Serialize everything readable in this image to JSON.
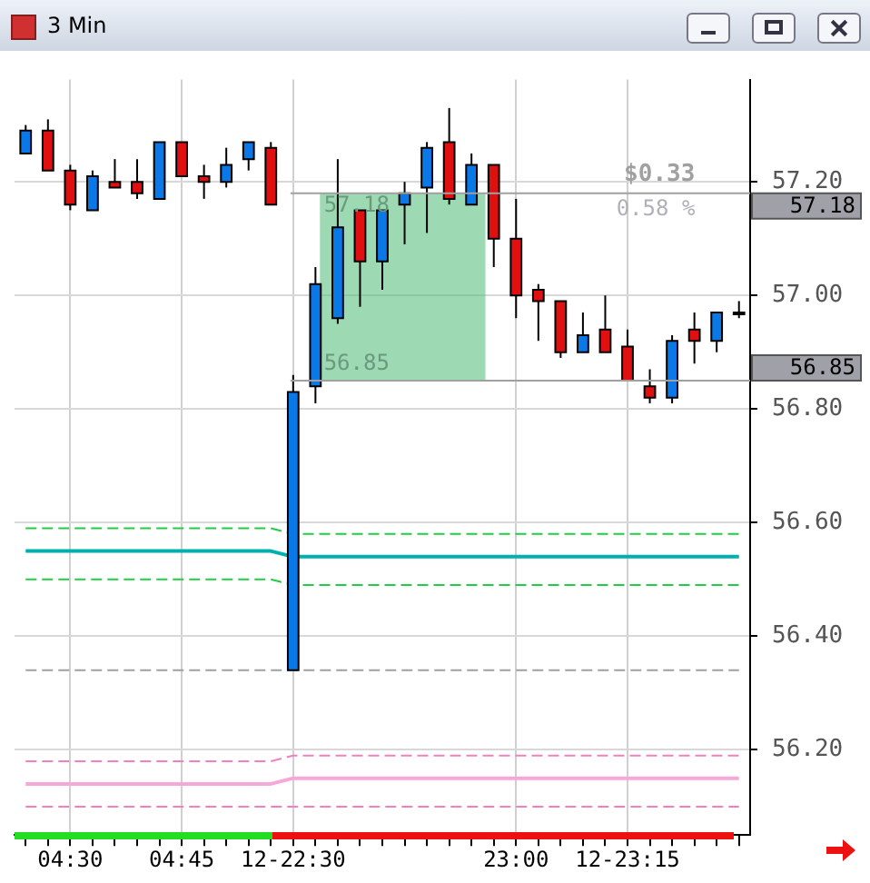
{
  "chart_data": {
    "type": "candlestick",
    "title": "3 Min",
    "categories": [
      null,
      null,
      "04:30",
      null,
      null,
      null,
      null,
      "04:45",
      null,
      null,
      null,
      null,
      "12-22:30",
      null,
      null,
      null,
      null,
      null,
      null,
      null,
      null,
      null,
      "23:00",
      null,
      null,
      null,
      null,
      "12-23:15",
      null,
      null,
      null,
      null,
      null
    ],
    "ohlc": [
      [
        57.25,
        57.3,
        57.25,
        57.29
      ],
      [
        57.29,
        57.31,
        57.22,
        57.22
      ],
      [
        57.22,
        57.23,
        57.15,
        57.16
      ],
      [
        57.15,
        57.22,
        57.15,
        57.21
      ],
      [
        57.2,
        57.24,
        57.19,
        57.19
      ],
      [
        57.2,
        57.24,
        57.17,
        57.18
      ],
      [
        57.17,
        57.27,
        57.17,
        57.27
      ],
      [
        57.27,
        57.27,
        57.21,
        57.21
      ],
      [
        57.21,
        57.23,
        57.17,
        57.2
      ],
      [
        57.2,
        57.26,
        57.19,
        57.23
      ],
      [
        57.24,
        57.27,
        57.22,
        57.27
      ],
      [
        57.26,
        57.27,
        57.16,
        57.16
      ],
      [
        56.34,
        56.86,
        56.34,
        56.83
      ],
      [
        56.84,
        57.05,
        56.81,
        57.02
      ],
      [
        56.96,
        57.24,
        56.95,
        57.12
      ],
      [
        57.15,
        57.15,
        56.98,
        57.06
      ],
      [
        57.06,
        57.15,
        57.01,
        57.15
      ],
      [
        57.16,
        57.2,
        57.09,
        57.18
      ],
      [
        57.19,
        57.27,
        57.11,
        57.26
      ],
      [
        57.27,
        57.33,
        57.16,
        57.17
      ],
      [
        57.16,
        57.25,
        57.16,
        57.23
      ],
      [
        57.23,
        57.23,
        57.05,
        57.1
      ],
      [
        57.1,
        57.17,
        56.96,
        57.0
      ],
      [
        57.01,
        57.02,
        56.92,
        56.99
      ],
      [
        56.99,
        56.99,
        56.89,
        56.9
      ],
      [
        56.9,
        56.97,
        56.9,
        56.93
      ],
      [
        56.94,
        57.0,
        56.9,
        56.9
      ],
      [
        56.91,
        56.94,
        56.85,
        56.85
      ],
      [
        56.84,
        56.87,
        56.81,
        56.82
      ],
      [
        56.82,
        56.93,
        56.81,
        56.92
      ],
      [
        56.94,
        56.97,
        56.88,
        56.92
      ],
      [
        56.92,
        56.97,
        56.9,
        56.97
      ],
      [
        56.97,
        56.99,
        56.96,
        56.97
      ]
    ],
    "colors": [
      "#0a78e6",
      "#e01010",
      "#e01010",
      "#0a78e6",
      "#e01010",
      "#e01010",
      "#0a78e6",
      "#e01010",
      "#e01010",
      "#0a78e6",
      "#0a78e6",
      "#e01010",
      "#0a78e6",
      "#0a78e6",
      "#0a78e6",
      "#e01010",
      "#0a78e6",
      "#0a78e6",
      "#0a78e6",
      "#e01010",
      "#0a78e6",
      "#e01010",
      "#e01010",
      "#e01010",
      "#e01010",
      "#0a78e6",
      "#e01010",
      "#e01010",
      "#e01010",
      "#0a78e6",
      "#e01010",
      "#0a78e6",
      "#0a78e6"
    ],
    "series": [
      {
        "type": "step",
        "color": "#22cc44",
        "line_style": "dashed",
        "values": [
          56.59,
          56.59,
          56.59,
          56.59,
          56.59,
          56.59,
          56.59,
          56.59,
          56.59,
          56.59,
          56.59,
          56.59,
          56.58,
          56.58,
          56.58,
          56.58,
          56.58,
          56.58,
          56.58,
          56.58,
          56.58,
          56.58,
          56.58,
          56.58,
          56.58,
          56.58,
          56.58,
          56.58,
          56.58,
          56.58,
          56.58,
          56.58,
          56.58
        ]
      },
      {
        "type": "step",
        "color": "#00b0b0",
        "line_style": "solid",
        "values": [
          56.55,
          56.55,
          56.55,
          56.55,
          56.55,
          56.55,
          56.55,
          56.55,
          56.55,
          56.55,
          56.55,
          56.55,
          56.54,
          56.54,
          56.54,
          56.54,
          56.54,
          56.54,
          56.54,
          56.54,
          56.54,
          56.54,
          56.54,
          56.54,
          56.54,
          56.54,
          56.54,
          56.54,
          56.54,
          56.54,
          56.54,
          56.54,
          56.54
        ]
      },
      {
        "type": "step",
        "color": "#22cc44",
        "line_style": "dashed",
        "values": [
          56.5,
          56.5,
          56.5,
          56.5,
          56.5,
          56.5,
          56.5,
          56.5,
          56.5,
          56.5,
          56.5,
          56.5,
          56.49,
          56.49,
          56.49,
          56.49,
          56.49,
          56.49,
          56.49,
          56.49,
          56.49,
          56.49,
          56.49,
          56.49,
          56.49,
          56.49,
          56.49,
          56.49,
          56.49,
          56.49,
          56.49,
          56.49,
          56.49
        ]
      },
      {
        "type": "step",
        "color": "#a0a0a0",
        "line_style": "dashed",
        "values": [
          56.34,
          56.34,
          56.34,
          56.34,
          56.34,
          56.34,
          56.34,
          56.34,
          56.34,
          56.34,
          56.34,
          56.34,
          56.34,
          56.34,
          56.34,
          56.34,
          56.34,
          56.34,
          56.34,
          56.34,
          56.34,
          56.34,
          56.34,
          56.34,
          56.34,
          56.34,
          56.34,
          56.34,
          56.34,
          56.34,
          56.34,
          56.34,
          56.34
        ]
      },
      {
        "type": "step",
        "color": "#f080c0",
        "line_style": "dashed",
        "values": [
          56.18,
          56.18,
          56.18,
          56.18,
          56.18,
          56.18,
          56.18,
          56.18,
          56.18,
          56.18,
          56.18,
          56.18,
          56.19,
          56.19,
          56.19,
          56.19,
          56.19,
          56.19,
          56.19,
          56.19,
          56.19,
          56.19,
          56.19,
          56.19,
          56.19,
          56.19,
          56.19,
          56.19,
          56.19,
          56.19,
          56.19,
          56.19,
          56.19
        ]
      },
      {
        "type": "step",
        "color": "#f8a8d8",
        "line_style": "solid",
        "values": [
          56.14,
          56.14,
          56.14,
          56.14,
          56.14,
          56.14,
          56.14,
          56.14,
          56.14,
          56.14,
          56.14,
          56.14,
          56.15,
          56.15,
          56.15,
          56.15,
          56.15,
          56.15,
          56.15,
          56.15,
          56.15,
          56.15,
          56.15,
          56.15,
          56.15,
          56.15,
          56.15,
          56.15,
          56.15,
          56.15,
          56.15,
          56.15,
          56.15
        ]
      },
      {
        "type": "step",
        "color": "#f080c0",
        "line_style": "dashed",
        "values": [
          56.1,
          56.1,
          56.1,
          56.1,
          56.1,
          56.1,
          56.1,
          56.1,
          56.1,
          56.1,
          56.1,
          56.1,
          56.1,
          56.1,
          56.1,
          56.1,
          56.1,
          56.1,
          56.1,
          56.1,
          56.1,
          56.1,
          56.1,
          56.1,
          56.1,
          56.1,
          56.1,
          56.1,
          56.1,
          56.1,
          56.1,
          56.1,
          56.1
        ]
      }
    ],
    "ref_lines": [
      {
        "axis": "y",
        "value": 57.18,
        "label": "57.18",
        "color": "#a0a0a0"
      },
      {
        "axis": "y",
        "value": 56.85,
        "label": "56.85",
        "color": "#a0a0a0"
      }
    ],
    "bands": [
      {
        "axis": "y",
        "from": 56.85,
        "to": 57.18,
        "color": "#5cc080"
      }
    ],
    "annotations": [
      "$0.33",
      "0.58 %",
      {
        "text": "57.18",
        "y": 57.18
      },
      {
        "text": "56.85",
        "y": 56.85
      }
    ],
    "ylim": [
      56.05,
      57.38
    ],
    "yticks": [
      {
        "value": 56.2,
        "label": "56.20"
      },
      {
        "value": 56.4,
        "label": "56.40"
      },
      {
        "value": 56.6,
        "label": "56.60"
      },
      {
        "value": 56.8,
        "label": "56.80"
      },
      {
        "value": 57.0,
        "label": "57.00"
      },
      {
        "value": 57.2,
        "label": "57.20"
      }
    ],
    "grid": true,
    "legend": false,
    "marker": "none"
  }
}
